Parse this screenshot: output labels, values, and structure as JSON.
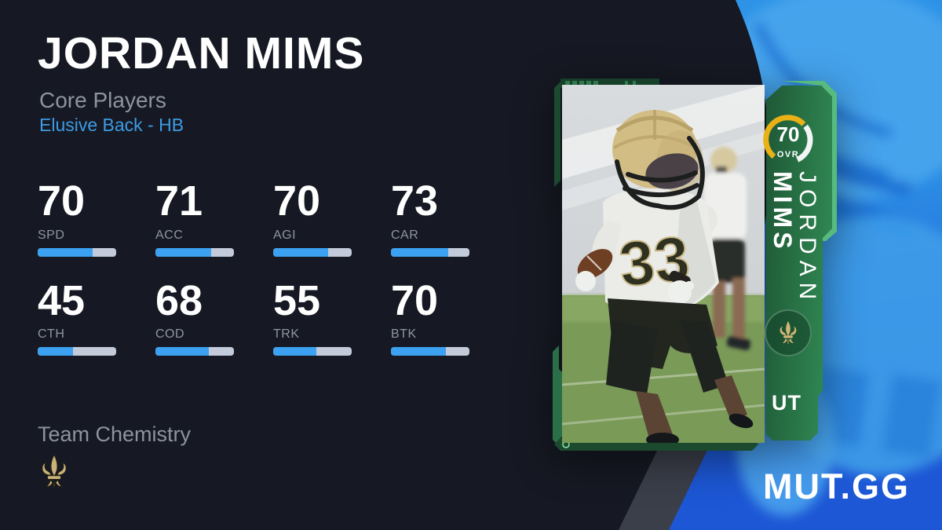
{
  "page": {
    "title": "JORDAN MIMS",
    "program": "Core Players",
    "archetype": "Elusive Back - HB"
  },
  "stats": [
    {
      "label": "SPD",
      "value": 70
    },
    {
      "label": "ACC",
      "value": 71
    },
    {
      "label": "AGI",
      "value": 70
    },
    {
      "label": "CAR",
      "value": 73
    },
    {
      "label": "CTH",
      "value": 45
    },
    {
      "label": "COD",
      "value": 68
    },
    {
      "label": "TRK",
      "value": 55
    },
    {
      "label": "BTK",
      "value": 70
    }
  ],
  "team_chemistry": {
    "label": "Team Chemistry",
    "team_icon": "saints-fleur-de-lis"
  },
  "card": {
    "name_line1": "JORDAN",
    "name_line2": "MIMS",
    "ovr": 70,
    "ovr_label": "OVR",
    "program_tag": "UT",
    "jersey_number": "33",
    "team_icon": "saints-fleur-de-lis"
  },
  "branding": {
    "logo": "MUT.GG"
  },
  "colors": {
    "background_navy": "#161923",
    "background_blue_top": "#2f97e7",
    "background_blue_bottom": "#1d57d5",
    "accent_blue_text": "#3d9be4",
    "stat_bar_fill": "#3ba1f0",
    "stat_bar_track": "#c3cbda",
    "card_green_dark": "#1e5836",
    "card_green_light": "#2f8551",
    "ovr_ring_gold": "#eab117",
    "fleur_gold": "#c9b178"
  }
}
